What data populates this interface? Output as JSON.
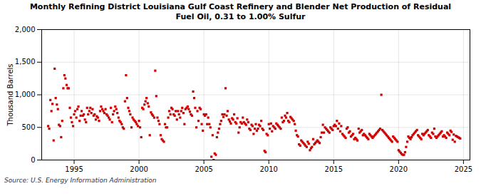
{
  "chart_data": {
    "type": "scatter",
    "title": "Monthly Refining District Louisiana Gulf Coast Refinery and Blender Net Production of Residual\nFuel Oil, 0.31 to 1.00% Sulfur",
    "ylabel": "Thousand Barrels",
    "annotation": "Source: U.S. Energy Information Administration",
    "color": "#cc0000",
    "marker": "square",
    "grid": true,
    "xlim": [
      1992.5,
      2025.5
    ],
    "xticks": [
      1995,
      2000,
      2005,
      2010,
      2015,
      2020,
      2025
    ],
    "ylim": [
      0,
      2000
    ],
    "yticks": [
      0,
      500,
      {
        "value": 1000,
        "label": "1,000"
      },
      {
        "value": 1500,
        "label": "1,500"
      },
      {
        "value": 2000,
        "label": "2,000"
      }
    ],
    "x": [
      1993.0,
      1993.08,
      1993.17,
      1993.25,
      1993.33,
      1993.42,
      1993.5,
      1993.58,
      1993.67,
      1993.75,
      1993.83,
      1993.92,
      1994.0,
      1994.08,
      1994.17,
      1994.25,
      1994.33,
      1994.42,
      1994.5,
      1994.58,
      1994.67,
      1994.75,
      1994.83,
      1994.92,
      1995.0,
      1995.08,
      1995.17,
      1995.25,
      1995.33,
      1995.42,
      1995.5,
      1995.58,
      1995.67,
      1995.75,
      1995.83,
      1995.92,
      1996.0,
      1996.08,
      1996.17,
      1996.25,
      1996.33,
      1996.42,
      1996.5,
      1996.58,
      1996.67,
      1996.75,
      1996.83,
      1996.92,
      1997.0,
      1997.08,
      1997.17,
      1997.25,
      1997.33,
      1997.42,
      1997.5,
      1997.58,
      1997.67,
      1997.75,
      1997.83,
      1997.92,
      1998.0,
      1998.08,
      1998.17,
      1998.25,
      1998.33,
      1998.42,
      1998.5,
      1998.58,
      1998.67,
      1998.75,
      1998.83,
      1998.92,
      1999.0,
      1999.08,
      1999.17,
      1999.25,
      1999.33,
      1999.42,
      1999.5,
      1999.58,
      1999.67,
      1999.75,
      1999.83,
      1999.92,
      2000.0,
      2000.08,
      2000.17,
      2000.25,
      2000.33,
      2000.42,
      2000.5,
      2000.58,
      2000.67,
      2000.75,
      2000.83,
      2000.92,
      2001.0,
      2001.08,
      2001.17,
      2001.25,
      2001.33,
      2001.42,
      2001.5,
      2001.58,
      2001.67,
      2001.75,
      2001.83,
      2001.92,
      2002.0,
      2002.08,
      2002.17,
      2002.25,
      2002.33,
      2002.42,
      2002.5,
      2002.58,
      2002.67,
      2002.75,
      2002.83,
      2002.92,
      2003.0,
      2003.08,
      2003.17,
      2003.25,
      2003.33,
      2003.42,
      2003.5,
      2003.58,
      2003.67,
      2003.75,
      2003.83,
      2003.92,
      2004.0,
      2004.08,
      2004.17,
      2004.25,
      2004.33,
      2004.42,
      2004.5,
      2004.58,
      2004.67,
      2004.75,
      2004.83,
      2004.92,
      2005.0,
      2005.08,
      2005.17,
      2005.25,
      2005.33,
      2005.42,
      2005.5,
      2005.58,
      2005.67,
      2005.75,
      2005.83,
      2005.92,
      2006.0,
      2006.08,
      2006.17,
      2006.25,
      2006.33,
      2006.42,
      2006.5,
      2006.58,
      2006.67,
      2006.75,
      2006.83,
      2006.92,
      2007.0,
      2007.08,
      2007.17,
      2007.25,
      2007.33,
      2007.42,
      2007.5,
      2007.58,
      2007.67,
      2007.75,
      2007.83,
      2007.92,
      2008.0,
      2008.08,
      2008.17,
      2008.25,
      2008.33,
      2008.42,
      2008.5,
      2008.58,
      2008.67,
      2008.75,
      2008.83,
      2008.92,
      2009.0,
      2009.08,
      2009.17,
      2009.25,
      2009.33,
      2009.42,
      2009.5,
      2009.58,
      2009.67,
      2009.75,
      2009.83,
      2009.92,
      2010.0,
      2010.08,
      2010.17,
      2010.25,
      2010.33,
      2010.42,
      2010.5,
      2010.58,
      2010.67,
      2010.75,
      2010.83,
      2010.92,
      2011.0,
      2011.08,
      2011.17,
      2011.25,
      2011.33,
      2011.42,
      2011.5,
      2011.58,
      2011.67,
      2011.75,
      2011.83,
      2011.92,
      2012.0,
      2012.08,
      2012.17,
      2012.25,
      2012.33,
      2012.42,
      2012.5,
      2012.58,
      2012.67,
      2012.75,
      2012.83,
      2012.92,
      2013.0,
      2013.08,
      2013.17,
      2013.25,
      2013.33,
      2013.42,
      2013.5,
      2013.58,
      2013.67,
      2013.75,
      2013.83,
      2013.92,
      2014.0,
      2014.08,
      2014.17,
      2014.25,
      2014.33,
      2014.42,
      2014.5,
      2014.58,
      2014.67,
      2014.75,
      2014.83,
      2014.92,
      2015.0,
      2015.08,
      2015.17,
      2015.25,
      2015.33,
      2015.42,
      2015.5,
      2015.58,
      2015.67,
      2015.75,
      2015.83,
      2015.92,
      2016.0,
      2016.08,
      2016.17,
      2016.25,
      2016.33,
      2016.42,
      2016.5,
      2016.58,
      2016.67,
      2016.75,
      2016.83,
      2016.92,
      2017.0,
      2017.08,
      2017.17,
      2017.25,
      2017.33,
      2017.42,
      2017.5,
      2017.58,
      2017.67,
      2017.75,
      2017.83,
      2017.92,
      2018.0,
      2018.08,
      2018.17,
      2018.25,
      2018.33,
      2018.42,
      2018.5,
      2018.58,
      2018.67,
      2018.75,
      2018.83,
      2018.92,
      2019.0,
      2019.08,
      2019.17,
      2019.25,
      2019.33,
      2019.42,
      2019.5,
      2019.58,
      2019.67,
      2019.75,
      2019.83,
      2019.92,
      2020.0,
      2020.08,
      2020.17,
      2020.25,
      2020.33,
      2020.42,
      2020.5,
      2020.58,
      2020.67,
      2020.75,
      2020.83,
      2020.92,
      2021.0,
      2021.08,
      2021.17,
      2021.25,
      2021.33,
      2021.42,
      2021.5,
      2021.58,
      2021.67,
      2021.75,
      2021.83,
      2021.92,
      2022.0,
      2022.08,
      2022.17,
      2022.25,
      2022.33,
      2022.42,
      2022.5,
      2022.58,
      2022.67,
      2022.75,
      2022.83,
      2022.92,
      2023.0,
      2023.08,
      2023.17,
      2023.25,
      2023.33,
      2023.42,
      2023.5,
      2023.58,
      2023.67,
      2023.75,
      2023.83,
      2023.92,
      2024.0,
      2024.08,
      2024.17,
      2024.25,
      2024.33,
      2024.42,
      2024.5,
      2024.58,
      2024.67,
      2024.75
    ],
    "values": [
      520,
      480,
      920,
      750,
      860,
      300,
      1400,
      950,
      850,
      780,
      540,
      520,
      350,
      600,
      1100,
      1300,
      1250,
      1150,
      1100,
      1100,
      800,
      650,
      580,
      520,
      700,
      750,
      650,
      780,
      820,
      600,
      680,
      750,
      680,
      700,
      620,
      580,
      800,
      700,
      750,
      800,
      720,
      780,
      680,
      700,
      620,
      670,
      650,
      600,
      750,
      820,
      780,
      750,
      720,
      780,
      700,
      680,
      650,
      620,
      800,
      580,
      700,
      750,
      820,
      780,
      720,
      650,
      600,
      580,
      550,
      500,
      480,
      900,
      1300,
      950,
      800,
      750,
      700,
      500,
      650,
      620,
      600,
      580,
      550,
      520,
      600,
      500,
      350,
      800,
      780,
      850,
      900,
      950,
      870,
      820,
      380,
      730,
      700,
      680,
      650,
      1370,
      980,
      650,
      600,
      550,
      380,
      320,
      300,
      280,
      550,
      500,
      500,
      650,
      750,
      700,
      800,
      780,
      700,
      680,
      750,
      620,
      750,
      700,
      650,
      750,
      800,
      720,
      550,
      780,
      800,
      820,
      780,
      740,
      700,
      680,
      1050,
      950,
      800,
      500,
      750,
      600,
      800,
      780,
      550,
      450,
      700,
      680,
      700,
      550,
      650,
      550,
      500,
      50,
      380,
      0,
      100,
      80,
      350,
      420,
      480,
      550,
      600,
      700,
      660,
      700,
      1100,
      680,
      750,
      620,
      590,
      560,
      640,
      620,
      700,
      580,
      560,
      640,
      420,
      500,
      580,
      560,
      650,
      580,
      560,
      540,
      620,
      580,
      480,
      460,
      540,
      520,
      400,
      480,
      550,
      450,
      480,
      540,
      520,
      600,
      480,
      460,
      140,
      120,
      400,
      380,
      550,
      480,
      560,
      440,
      520,
      500,
      480,
      560,
      540,
      520,
      500,
      480,
      650,
      580,
      600,
      680,
      650,
      720,
      600,
      580,
      660,
      640,
      620,
      600,
      550,
      450,
      380,
      360,
      240,
      220,
      300,
      280,
      260,
      240,
      220,
      200,
      280,
      250,
      150,
      180,
      200,
      320,
      240,
      260,
      280,
      300,
      280,
      260,
      350,
      420,
      540,
      420,
      500,
      480,
      460,
      440,
      420,
      500,
      480,
      460,
      520,
      540,
      520,
      600,
      480,
      560,
      440,
      520,
      400,
      380,
      360,
      340,
      480,
      500,
      420,
      440,
      360,
      380,
      400,
      320,
      340,
      320,
      300,
      480,
      420,
      440,
      460,
      380,
      400,
      380,
      360,
      340,
      320,
      400,
      380,
      360,
      340,
      360,
      380,
      400,
      420,
      440,
      460,
      480,
      1000,
      460,
      440,
      420,
      400,
      380,
      360,
      340,
      320,
      300,
      280,
      360,
      340,
      320,
      300,
      280,
      150,
      130,
      110,
      90,
      80,
      80,
      120,
      200,
      280,
      360,
      340,
      320,
      350,
      380,
      400,
      420,
      440,
      460,
      380,
      360,
      340,
      320,
      400,
      380,
      400,
      420,
      440,
      460,
      380,
      360,
      340,
      420,
      400,
      480,
      360,
      340,
      360,
      380,
      400,
      420,
      440,
      360,
      380,
      360,
      340,
      420,
      400,
      380,
      450,
      430,
      310,
      390,
      280,
      370,
      360,
      350,
      340,
      330
    ]
  }
}
